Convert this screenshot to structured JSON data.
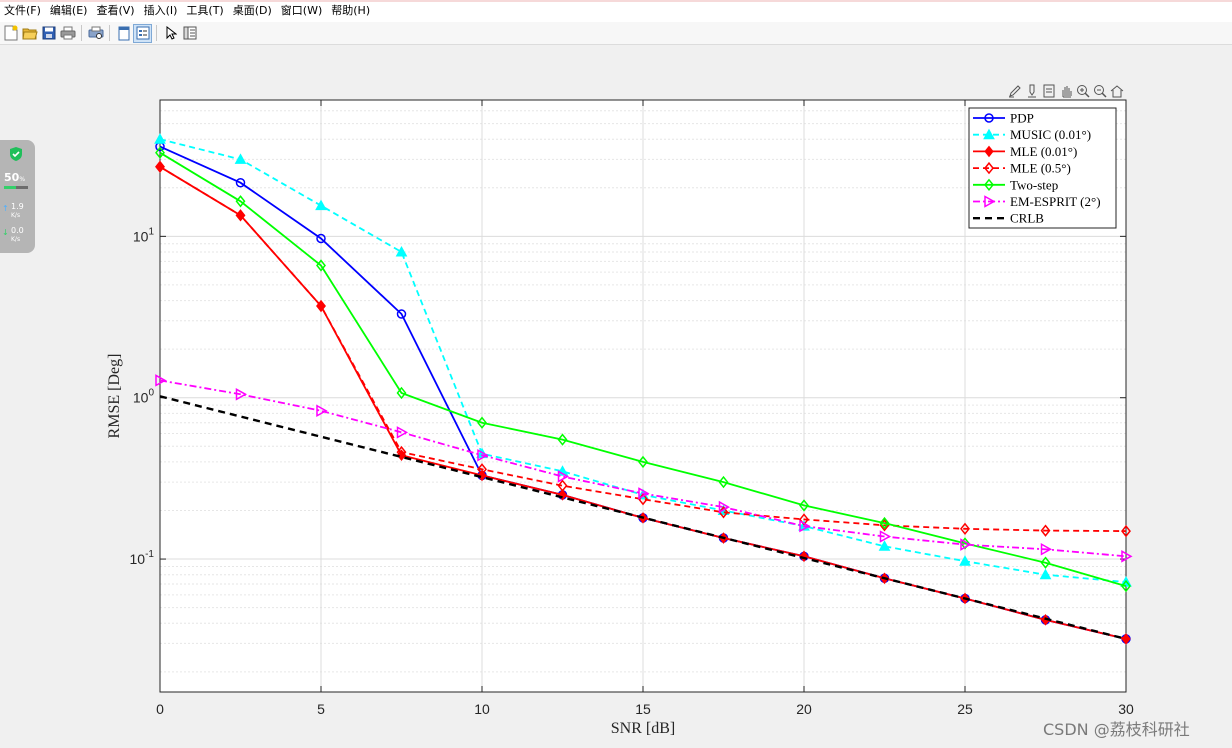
{
  "menu": [
    "文件(F)",
    "编辑(E)",
    "查看(V)",
    "插入(I)",
    "工具(T)",
    "桌面(D)",
    "窗口(W)",
    "帮助(H)"
  ],
  "toolbar_icons": [
    "new-figure-icon",
    "open-file-icon",
    "save-icon",
    "print-icon",
    "print-preview-icon",
    "dock-icon",
    "property-editor-icon",
    "pointer-icon",
    "plot-browser-icon"
  ],
  "axes_toolbar_icons": [
    "brush-icon",
    "data-tips-icon",
    "export-icon",
    "pan-icon",
    "zoom-in-icon",
    "zoom-out-icon",
    "home-icon"
  ],
  "widget": {
    "percent": "50",
    "percent_unit": "%",
    "upload": "1.9",
    "upload_unit": "K/s",
    "download": "0.0",
    "download_unit": "K/s",
    "accent": "#34d06a"
  },
  "watermark": "CSDN @荔枝科研社",
  "chart_data": {
    "type": "line",
    "xlabel": "SNR [dB]",
    "ylabel": "RMSE [Deg]",
    "xlim": [
      0,
      30
    ],
    "ylim": [
      0.015,
      70
    ],
    "yscale": "log",
    "grid": true,
    "minor_grid": true,
    "legend_position": "top-right",
    "x_ticks": [
      "0",
      "5",
      "10",
      "15",
      "20",
      "25",
      "30"
    ],
    "y_ticks": [
      {
        "base": "10",
        "exp": "1",
        "value": 10
      },
      {
        "base": "10",
        "exp": "0",
        "value": 1
      },
      {
        "base": "10",
        "exp": "-1",
        "value": 0.1
      }
    ],
    "series": [
      {
        "name": "PDP",
        "color": "#0000ff",
        "dash": "solid",
        "marker": "circle",
        "x": [
          0,
          2.5,
          5,
          7.5,
          10,
          12.5,
          15,
          17.5,
          20,
          22.5,
          25,
          27.5,
          30
        ],
        "y": [
          36,
          21.5,
          9.7,
          3.3,
          0.33,
          0.25,
          0.18,
          0.135,
          0.104,
          0.076,
          0.057,
          0.042,
          0.032
        ]
      },
      {
        "name": "MUSIC (0.01°)",
        "color": "#00ffff",
        "dash": "dashed",
        "marker": "triangle",
        "x": [
          0,
          2.5,
          5,
          7.5,
          10,
          12.5,
          15,
          17.5,
          20,
          22.5,
          25,
          27.5,
          30
        ],
        "y": [
          40,
          30,
          15.5,
          8,
          0.45,
          0.35,
          0.25,
          0.2,
          0.16,
          0.12,
          0.097,
          0.08,
          0.072
        ]
      },
      {
        "name": "MLE (0.01°)",
        "color": "#ff0000",
        "dash": "solid",
        "marker": "filled-diamond",
        "x": [
          0,
          2.5,
          5,
          7.5,
          10,
          12.5,
          15,
          17.5,
          20,
          22.5,
          25,
          27.5,
          30
        ],
        "y": [
          27,
          13.5,
          3.7,
          0.44,
          0.33,
          0.25,
          0.18,
          0.135,
          0.104,
          0.076,
          0.057,
          0.042,
          0.032
        ]
      },
      {
        "name": "MLE (0.5°)",
        "color": "#ff0000",
        "dash": "dashed",
        "marker": "diamond",
        "x": [
          0,
          2.5,
          5,
          7.5,
          10,
          12.5,
          15,
          17.5,
          20,
          22.5,
          25,
          27.5,
          30
        ],
        "y": [
          27,
          13.5,
          3.7,
          0.46,
          0.36,
          0.285,
          0.235,
          0.195,
          0.176,
          0.162,
          0.154,
          0.15,
          0.149
        ]
      },
      {
        "name": "Two-step",
        "color": "#00ff00",
        "dash": "solid",
        "marker": "diamond",
        "x": [
          0,
          2.5,
          5,
          7.5,
          10,
          12.5,
          15,
          17.5,
          20,
          22.5,
          25,
          27.5,
          30
        ],
        "y": [
          33,
          16.5,
          6.6,
          1.07,
          0.7,
          0.55,
          0.4,
          0.3,
          0.215,
          0.167,
          0.125,
          0.095,
          0.068
        ]
      },
      {
        "name": "EM-ESPRIT (2°)",
        "color": "#ff00ff",
        "dash": "dashdot",
        "marker": "triangle-right",
        "x": [
          0,
          2.5,
          5,
          7.5,
          10,
          12.5,
          15,
          17.5,
          20,
          22.5,
          25,
          27.5,
          30
        ],
        "y": [
          1.28,
          1.05,
          0.83,
          0.61,
          0.44,
          0.325,
          0.255,
          0.21,
          0.16,
          0.138,
          0.123,
          0.115,
          0.104
        ]
      },
      {
        "name": "CRLB",
        "color": "#000000",
        "dash": "dashed-thick",
        "marker": "none",
        "x": [
          0,
          30
        ],
        "y": [
          1.02,
          0.032
        ]
      }
    ]
  }
}
